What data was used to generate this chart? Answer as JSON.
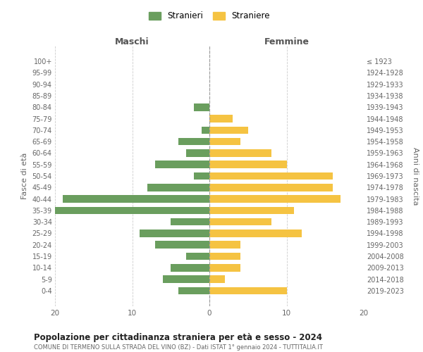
{
  "age_groups": [
    "0-4",
    "5-9",
    "10-14",
    "15-19",
    "20-24",
    "25-29",
    "30-34",
    "35-39",
    "40-44",
    "45-49",
    "50-54",
    "55-59",
    "60-64",
    "65-69",
    "70-74",
    "75-79",
    "80-84",
    "85-89",
    "90-94",
    "95-99",
    "100+"
  ],
  "birth_years": [
    "2019-2023",
    "2014-2018",
    "2009-2013",
    "2004-2008",
    "1999-2003",
    "1994-1998",
    "1989-1993",
    "1984-1988",
    "1979-1983",
    "1974-1978",
    "1969-1973",
    "1964-1968",
    "1959-1963",
    "1954-1958",
    "1949-1953",
    "1944-1948",
    "1939-1943",
    "1934-1938",
    "1929-1933",
    "1924-1928",
    "≤ 1923"
  ],
  "maschi": [
    4,
    6,
    5,
    3,
    7,
    9,
    5,
    20,
    19,
    8,
    2,
    7,
    3,
    4,
    1,
    0,
    2,
    0,
    0,
    0,
    0
  ],
  "femmine": [
    10,
    2,
    4,
    4,
    4,
    12,
    8,
    11,
    17,
    16,
    16,
    10,
    8,
    4,
    5,
    3,
    0,
    0,
    0,
    0,
    0
  ],
  "color_maschi": "#6a9e5e",
  "color_femmine": "#f5c342",
  "title": "Popolazione per cittadinanza straniera per età e sesso - 2024",
  "subtitle": "COMUNE DI TERMENO SULLA STRADA DEL VINO (BZ) - Dati ISTAT 1° gennaio 2024 - TUTTITALIA.IT",
  "label_maschi": "Maschi",
  "label_femmine": "Femmine",
  "ylabel_left": "Fasce di età",
  "ylabel_right": "Anni di nascita",
  "legend_maschi": "Stranieri",
  "legend_femmine": "Straniere",
  "xlim": 20,
  "background_color": "#ffffff",
  "grid_color": "#cccccc"
}
